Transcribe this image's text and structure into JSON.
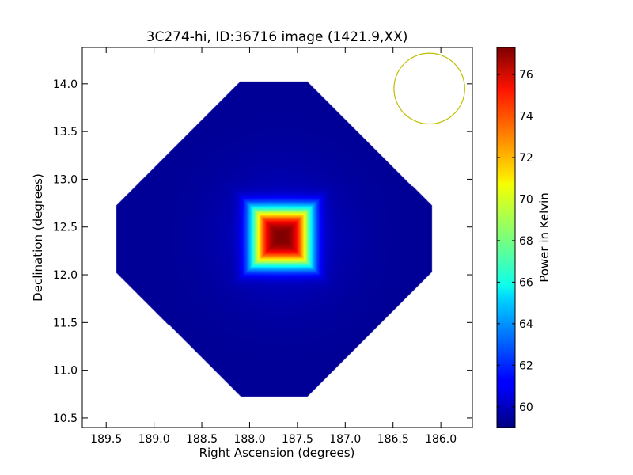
{
  "chart_data": {
    "type": "heatmap",
    "title": "3C274-hi, ID:36716 image (1421.9,XX)",
    "xlabel": "Right Ascension (degrees)",
    "ylabel": "Declination (degrees)",
    "xlim": [
      189.75,
      185.67
    ],
    "ylim": [
      10.4,
      14.38
    ],
    "x_ticks": [
      {
        "value": 189.5,
        "label": "189.5"
      },
      {
        "value": 189.0,
        "label": "189.0"
      },
      {
        "value": 188.5,
        "label": "188.5"
      },
      {
        "value": 188.0,
        "label": "188.0"
      },
      {
        "value": 187.5,
        "label": "187.5"
      },
      {
        "value": 187.0,
        "label": "187.0"
      },
      {
        "value": 186.5,
        "label": "186.5"
      },
      {
        "value": 186.0,
        "label": "186.0"
      }
    ],
    "y_ticks": [
      {
        "value": 10.5,
        "label": "10.5"
      },
      {
        "value": 11.0,
        "label": "11.0"
      },
      {
        "value": 11.5,
        "label": "11.5"
      },
      {
        "value": 12.0,
        "label": "12.0"
      },
      {
        "value": 12.5,
        "label": "12.5"
      },
      {
        "value": 13.0,
        "label": "13.0"
      },
      {
        "value": 13.5,
        "label": "13.5"
      },
      {
        "value": 14.0,
        "label": "14.0"
      }
    ],
    "colorbar": {
      "label": "Power in Kelvin",
      "range": [
        59.0,
        77.3
      ],
      "ticks": [
        {
          "value": 60,
          "label": "60"
        },
        {
          "value": 62,
          "label": "62"
        },
        {
          "value": 64,
          "label": "64"
        },
        {
          "value": 66,
          "label": "66"
        },
        {
          "value": 68,
          "label": "68"
        },
        {
          "value": 70,
          "label": "70"
        },
        {
          "value": 72,
          "label": "72"
        },
        {
          "value": 74,
          "label": "74"
        },
        {
          "value": 76,
          "label": "76"
        }
      ],
      "colormap": "jet"
    },
    "map": {
      "center_ra": 187.75,
      "center_dec": 12.38,
      "coverage_half_diagonal_deg": 2.0,
      "background_level": 59.4,
      "peak_level": 77.3,
      "peak_ra": 187.67,
      "peak_dec": 12.4,
      "hot_box_half_width_deg": 0.3
    },
    "beam": {
      "ra": 186.12,
      "dec": 13.95,
      "radius_deg": 0.37,
      "color": "#bfbf00"
    }
  }
}
